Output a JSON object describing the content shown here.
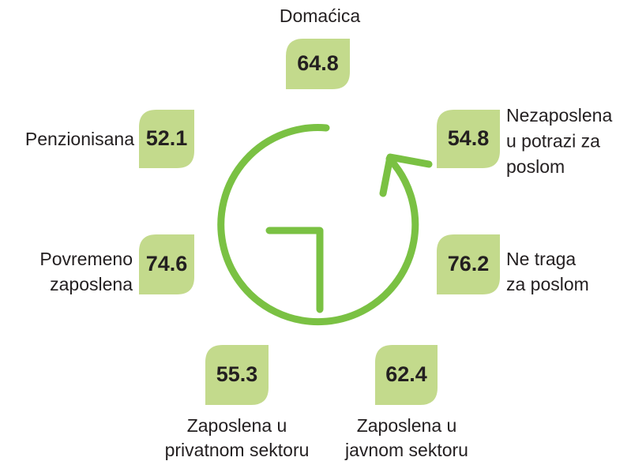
{
  "items": [
    {
      "label": [
        "Domaćica"
      ],
      "value": "64.8"
    },
    {
      "label": [
        "Penzionisana"
      ],
      "value": "52.1"
    },
    {
      "label": [
        "Nezaposlena",
        "u potrazi za",
        "poslom"
      ],
      "value": "54.8"
    },
    {
      "label": [
        "Povremeno",
        "zaposlena"
      ],
      "value": "74.6"
    },
    {
      "label": [
        "Ne traga",
        "za poslom"
      ],
      "value": "76.2"
    },
    {
      "label": [
        "Zaposlena u",
        "privatnom sektoru"
      ],
      "value": "55.3"
    },
    {
      "label": [
        "Zaposlena u",
        "javnom sektoru"
      ],
      "value": "62.4"
    }
  ]
}
